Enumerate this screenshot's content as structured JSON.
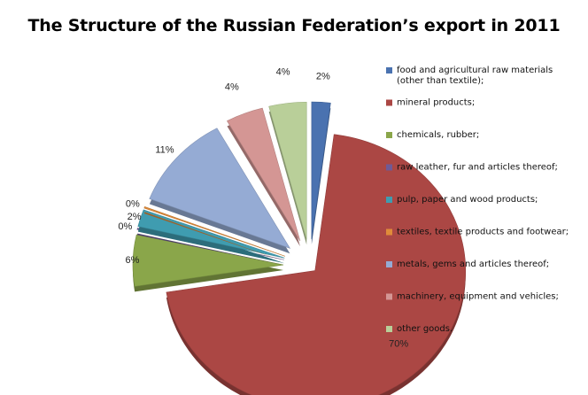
{
  "chart_data": {
    "type": "pie",
    "style": "exploded-3d",
    "title": "The Structure of the Russian Federation’s export in 2011",
    "slices": [
      {
        "label": "food and agricultural raw materials (other than textile);",
        "value": 2,
        "value_label": "2%",
        "color": "#4a72b0"
      },
      {
        "label": "mineral products;",
        "value": 70,
        "value_label": "70%",
        "color": "#ab4744"
      },
      {
        "label": "chemicals, rubber;",
        "value": 6,
        "value_label": "6%",
        "color": "#8aa64a"
      },
      {
        "label": "raw leather, fur and articles thereof;",
        "value": 0,
        "value_label": "0%",
        "color": "#6f5a96"
      },
      {
        "label": "pulp, paper and wood products;",
        "value": 2,
        "value_label": "2%",
        "color": "#3f9cb0"
      },
      {
        "label": "textiles, textile products and footwear;",
        "value": 0,
        "value_label": "0%",
        "color": "#e08b3a"
      },
      {
        "label": "metals, gems and articles thereof;",
        "value": 11,
        "value_label": "11%",
        "color": "#95abd4"
      },
      {
        "label": "machinery, equipment and vehicles;",
        "value": 4,
        "value_label": "4%",
        "color": "#d49694"
      },
      {
        "label": "other goods.",
        "value": 4,
        "value_label": "4%",
        "color": "#b9cf99"
      }
    ],
    "legend_position": "right"
  }
}
